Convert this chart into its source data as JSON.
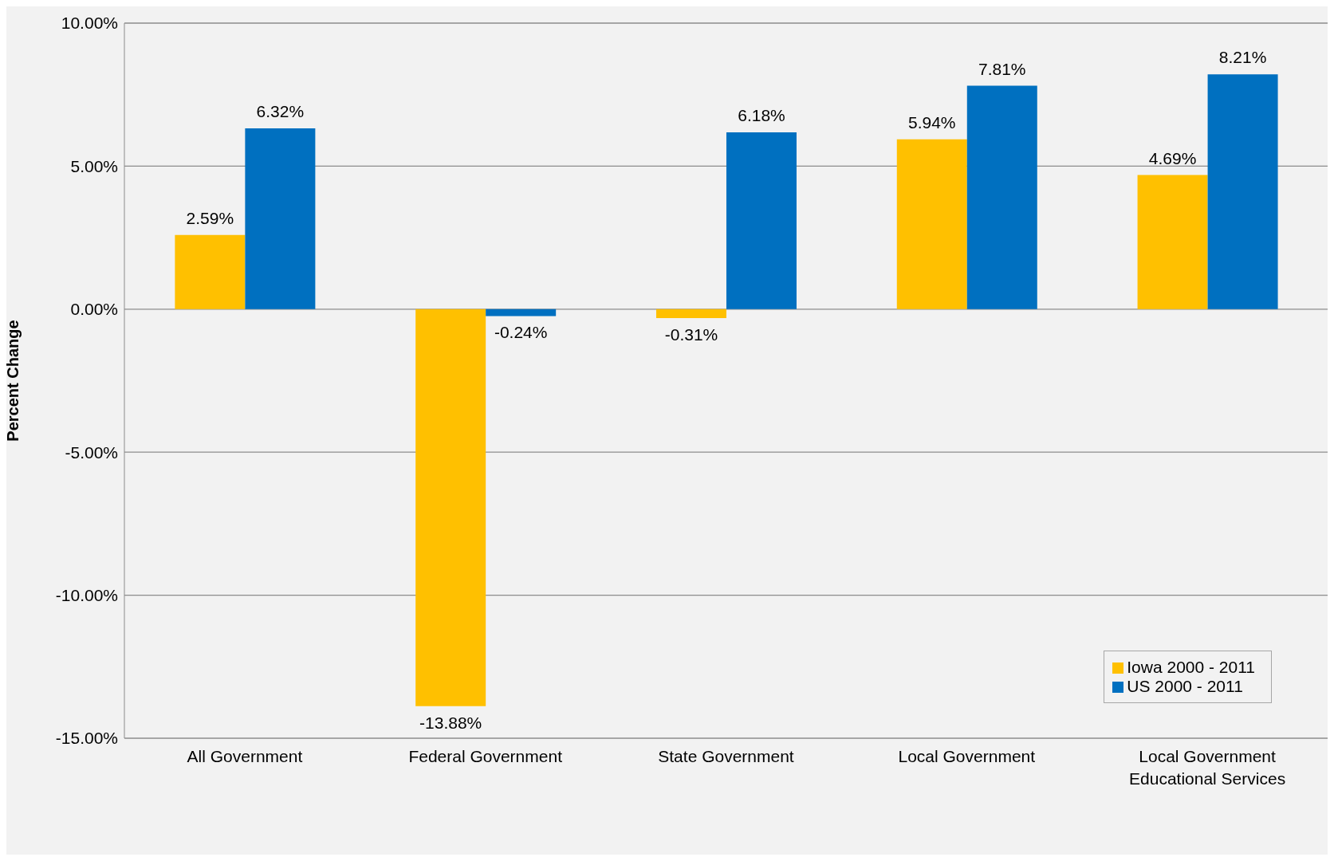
{
  "chart_data": {
    "type": "bar",
    "ylabel": "Percent Change",
    "categories": [
      "All Government",
      "Federal Government",
      "State Government",
      "Local Government",
      "Local Government Educational Services"
    ],
    "series": [
      {
        "name": "Iowa 2000 - 2011",
        "color": "#ffc000",
        "values": [
          2.59,
          -13.88,
          -0.31,
          5.94,
          4.69
        ],
        "value_labels": [
          "2.59%",
          "-13.88%",
          "-0.31%",
          "5.94%",
          "4.69%"
        ]
      },
      {
        "name": "US 2000 - 2011",
        "color": "#0070c0",
        "values": [
          6.32,
          -0.24,
          6.18,
          7.81,
          8.21
        ],
        "value_labels": [
          "6.32%",
          "-0.24%",
          "6.18%",
          "7.81%",
          "8.21%"
        ]
      }
    ],
    "ylim": [
      -15,
      10
    ],
    "yticks": [
      {
        "value": -15,
        "label": "-15.00%"
      },
      {
        "value": -10,
        "label": "-10.00%"
      },
      {
        "value": -5,
        "label": "-5.00%"
      },
      {
        "value": 0,
        "label": "0.00%"
      },
      {
        "value": 5,
        "label": "5.00%"
      },
      {
        "value": 10,
        "label": "10.00%"
      }
    ],
    "grid": "y",
    "legend": "bottom right"
  }
}
